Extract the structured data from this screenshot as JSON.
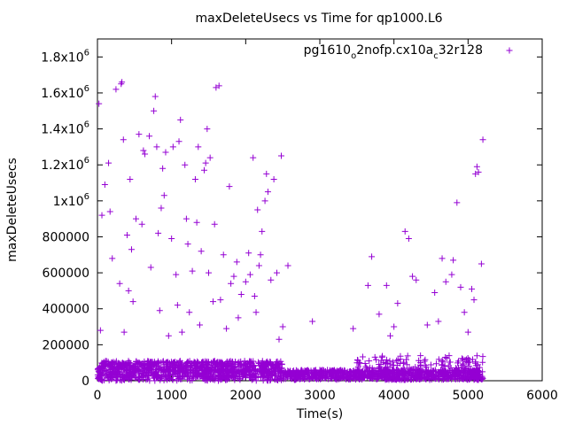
{
  "chart_data": {
    "type": "scatter",
    "title": "maxDeleteUsecs vs Time for qp1000.L6",
    "xlabel": "Time(s)",
    "ylabel": "maxDeleteUsecs",
    "xlim": [
      0,
      6000
    ],
    "ylim": [
      0,
      1900000
    ],
    "grid": false,
    "legend_position": "top-right",
    "marker": "plus",
    "x_ticks": [
      0,
      1000,
      2000,
      3000,
      4000,
      5000,
      6000
    ],
    "y_ticks": [
      0,
      200000,
      400000,
      600000,
      800000,
      1000000,
      1200000,
      1400000,
      1600000,
      1800000
    ],
    "y_tick_labels": [
      {
        "text": "0"
      },
      {
        "text": "200000"
      },
      {
        "text": "400000"
      },
      {
        "text": "600000"
      },
      {
        "text": "800000"
      },
      {
        "base": "1x10",
        "exp": "6"
      },
      {
        "base": "1.2x10",
        "exp": "6"
      },
      {
        "base": "1.4x10",
        "exp": "6"
      },
      {
        "base": "1.6x10",
        "exp": "6"
      },
      {
        "base": "1.8x10",
        "exp": "6"
      }
    ],
    "series": [
      {
        "name": "pg1610_o2nofp.cx10a_c32r128",
        "name_parts": [
          {
            "t": "pg1610",
            "sub": false
          },
          {
            "t": "o",
            "sub": true
          },
          {
            "t": "2nofp.cx10a",
            "sub": false
          },
          {
            "t": "c",
            "sub": true
          },
          {
            "t": "32r128",
            "sub": false
          }
        ],
        "color": "#9400d3",
        "bands": [
          {
            "x": [
              0,
              2500
            ],
            "y": [
              20000,
              110000
            ],
            "n": 1000
          },
          {
            "x": [
              2500,
              5200
            ],
            "y": [
              5000,
              60000
            ],
            "n": 900
          },
          {
            "x": [
              0,
              2500
            ],
            "y": [
              0,
              20000
            ],
            "n": 140
          },
          {
            "x": [
              3500,
              5200
            ],
            "y": [
              60000,
              140000
            ],
            "n": 120
          }
        ],
        "outliers": [
          [
            20,
            1540000
          ],
          [
            40,
            280000
          ],
          [
            60,
            920000
          ],
          [
            100,
            1090000
          ],
          [
            150,
            1210000
          ],
          [
            170,
            940000
          ],
          [
            200,
            680000
          ],
          [
            250,
            1620000
          ],
          [
            300,
            540000
          ],
          [
            320,
            1650000
          ],
          [
            330,
            1660000
          ],
          [
            350,
            1340000
          ],
          [
            360,
            270000
          ],
          [
            400,
            810000
          ],
          [
            420,
            500000
          ],
          [
            440,
            1120000
          ],
          [
            460,
            730000
          ],
          [
            480,
            440000
          ],
          [
            520,
            900000
          ],
          [
            560,
            1370000
          ],
          [
            600,
            870000
          ],
          [
            620,
            1280000
          ],
          [
            640,
            1260000
          ],
          [
            700,
            1360000
          ],
          [
            720,
            630000
          ],
          [
            760,
            1500000
          ],
          [
            780,
            1580000
          ],
          [
            800,
            1300000
          ],
          [
            820,
            820000
          ],
          [
            840,
            390000
          ],
          [
            860,
            960000
          ],
          [
            880,
            1180000
          ],
          [
            900,
            1030000
          ],
          [
            920,
            1270000
          ],
          [
            960,
            250000
          ],
          [
            1000,
            790000
          ],
          [
            1020,
            1300000
          ],
          [
            1060,
            590000
          ],
          [
            1080,
            420000
          ],
          [
            1100,
            1330000
          ],
          [
            1120,
            1450000
          ],
          [
            1140,
            270000
          ],
          [
            1180,
            1200000
          ],
          [
            1200,
            900000
          ],
          [
            1220,
            760000
          ],
          [
            1240,
            380000
          ],
          [
            1280,
            610000
          ],
          [
            1320,
            1120000
          ],
          [
            1340,
            880000
          ],
          [
            1360,
            1300000
          ],
          [
            1380,
            310000
          ],
          [
            1400,
            720000
          ],
          [
            1440,
            1170000
          ],
          [
            1460,
            1210000
          ],
          [
            1480,
            1400000
          ],
          [
            1500,
            600000
          ],
          [
            1520,
            1240000
          ],
          [
            1560,
            440000
          ],
          [
            1580,
            870000
          ],
          [
            1600,
            1630000
          ],
          [
            1640,
            1640000
          ],
          [
            1660,
            450000
          ],
          [
            1700,
            700000
          ],
          [
            1740,
            290000
          ],
          [
            1780,
            1080000
          ],
          [
            1800,
            540000
          ],
          [
            1840,
            580000
          ],
          [
            1880,
            660000
          ],
          [
            1900,
            350000
          ],
          [
            1940,
            480000
          ],
          [
            2000,
            550000
          ],
          [
            2040,
            710000
          ],
          [
            2060,
            590000
          ],
          [
            2100,
            1240000
          ],
          [
            2120,
            470000
          ],
          [
            2140,
            380000
          ],
          [
            2160,
            950000
          ],
          [
            2180,
            640000
          ],
          [
            2200,
            700000
          ],
          [
            2220,
            830000
          ],
          [
            2260,
            1000000
          ],
          [
            2280,
            1150000
          ],
          [
            2300,
            1050000
          ],
          [
            2340,
            560000
          ],
          [
            2380,
            1120000
          ],
          [
            2420,
            600000
          ],
          [
            2450,
            230000
          ],
          [
            2480,
            1250000
          ],
          [
            2500,
            300000
          ],
          [
            2570,
            640000
          ],
          [
            2900,
            330000
          ],
          [
            3450,
            290000
          ],
          [
            3650,
            530000
          ],
          [
            3700,
            690000
          ],
          [
            3800,
            370000
          ],
          [
            3900,
            530000
          ],
          [
            3950,
            250000
          ],
          [
            4000,
            300000
          ],
          [
            4050,
            430000
          ],
          [
            4150,
            830000
          ],
          [
            4200,
            790000
          ],
          [
            4250,
            580000
          ],
          [
            4300,
            560000
          ],
          [
            4450,
            310000
          ],
          [
            4550,
            490000
          ],
          [
            4600,
            330000
          ],
          [
            4650,
            680000
          ],
          [
            4700,
            550000
          ],
          [
            4780,
            590000
          ],
          [
            4800,
            670000
          ],
          [
            4850,
            990000
          ],
          [
            4900,
            520000
          ],
          [
            4950,
            380000
          ],
          [
            5000,
            270000
          ],
          [
            5050,
            510000
          ],
          [
            5080,
            450000
          ],
          [
            5100,
            1150000
          ],
          [
            5120,
            1190000
          ],
          [
            5140,
            1160000
          ],
          [
            5180,
            650000
          ],
          [
            5200,
            1340000
          ]
        ]
      }
    ]
  }
}
